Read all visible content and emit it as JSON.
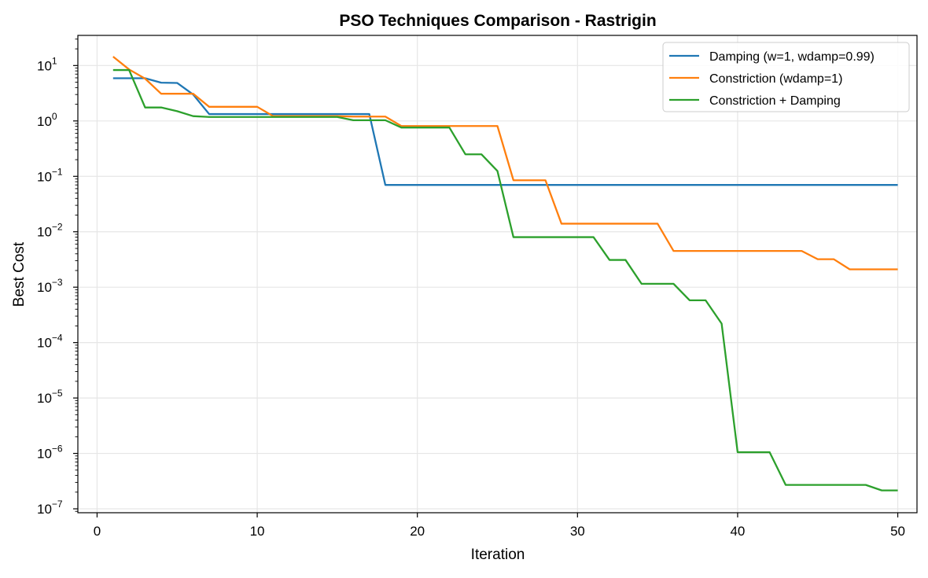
{
  "chart_data": {
    "type": "line",
    "title": "PSO Techniques Comparison - Rastrigin",
    "xlabel": "Iteration",
    "ylabel": "Best Cost",
    "xscale": "linear",
    "yscale": "log",
    "xlim": [
      -1.2,
      51.2
    ],
    "ylim": [
      8.5e-08,
      35
    ],
    "xticks": [
      0,
      10,
      20,
      30,
      40,
      50
    ],
    "xtick_labels": [
      "0",
      "10",
      "20",
      "30",
      "40",
      "50"
    ],
    "yticks": [
      1e-07,
      1e-06,
      1e-05,
      0.0001,
      0.001,
      0.01,
      0.1,
      1.0,
      10.0
    ],
    "ytick_labels": [
      {
        "base": "10",
        "exp": "−7"
      },
      {
        "base": "10",
        "exp": "−6"
      },
      {
        "base": "10",
        "exp": "−5"
      },
      {
        "base": "10",
        "exp": "−4"
      },
      {
        "base": "10",
        "exp": "−3"
      },
      {
        "base": "10",
        "exp": "−2"
      },
      {
        "base": "10",
        "exp": "−1"
      },
      {
        "base": "10",
        "exp": "0"
      },
      {
        "base": "10",
        "exp": "1"
      }
    ],
    "grid": true,
    "legend_position": "top-right",
    "x": [
      1,
      2,
      3,
      4,
      5,
      6,
      7,
      8,
      9,
      10,
      11,
      12,
      13,
      14,
      15,
      16,
      17,
      18,
      19,
      20,
      21,
      22,
      23,
      24,
      25,
      26,
      27,
      28,
      29,
      30,
      31,
      32,
      33,
      34,
      35,
      36,
      37,
      38,
      39,
      40,
      41,
      42,
      43,
      44,
      45,
      46,
      47,
      48,
      49,
      50
    ],
    "series": [
      {
        "name": "Damping (w=1, wdamp=0.99)",
        "color": "#1f77b4",
        "values": [
          5.9,
          5.9,
          5.9,
          4.9,
          4.85,
          3.0,
          1.33,
          1.33,
          1.33,
          1.33,
          1.33,
          1.33,
          1.33,
          1.33,
          1.33,
          1.33,
          1.33,
          0.07,
          0.07,
          0.07,
          0.07,
          0.07,
          0.07,
          0.07,
          0.07,
          0.07,
          0.07,
          0.07,
          0.07,
          0.07,
          0.07,
          0.07,
          0.07,
          0.07,
          0.07,
          0.07,
          0.07,
          0.07,
          0.07,
          0.07,
          0.07,
          0.07,
          0.07,
          0.07,
          0.07,
          0.07,
          0.07,
          0.07,
          0.07,
          0.07
        ]
      },
      {
        "name": "Constriction (wdamp=1)",
        "color": "#ff7f0e",
        "values": [
          14.5,
          8.5,
          5.8,
          3.1,
          3.1,
          3.1,
          1.8,
          1.8,
          1.8,
          1.8,
          1.22,
          1.22,
          1.22,
          1.22,
          1.22,
          1.2,
          1.2,
          1.2,
          0.81,
          0.81,
          0.81,
          0.81,
          0.81,
          0.81,
          0.81,
          0.085,
          0.085,
          0.085,
          0.014,
          0.014,
          0.014,
          0.014,
          0.014,
          0.014,
          0.014,
          0.0045,
          0.0045,
          0.0045,
          0.0045,
          0.0045,
          0.0045,
          0.0045,
          0.0045,
          0.0045,
          0.0032,
          0.0032,
          0.0021,
          0.0021,
          0.0021,
          0.0021
        ]
      },
      {
        "name": "Constriction + Damping",
        "color": "#2ca02c",
        "values": [
          8.3,
          8.3,
          1.75,
          1.75,
          1.5,
          1.22,
          1.18,
          1.18,
          1.18,
          1.18,
          1.18,
          1.18,
          1.18,
          1.18,
          1.18,
          1.03,
          1.03,
          1.03,
          0.76,
          0.76,
          0.76,
          0.76,
          0.25,
          0.25,
          0.125,
          0.008,
          0.008,
          0.008,
          0.008,
          0.008,
          0.008,
          0.0031,
          0.0031,
          0.00115,
          0.00115,
          0.00115,
          0.00058,
          0.00058,
          0.00022,
          1.05e-06,
          1.05e-06,
          1.05e-06,
          2.7e-07,
          2.7e-07,
          2.7e-07,
          2.7e-07,
          2.7e-07,
          2.7e-07,
          2.15e-07,
          2.15e-07
        ]
      }
    ]
  }
}
